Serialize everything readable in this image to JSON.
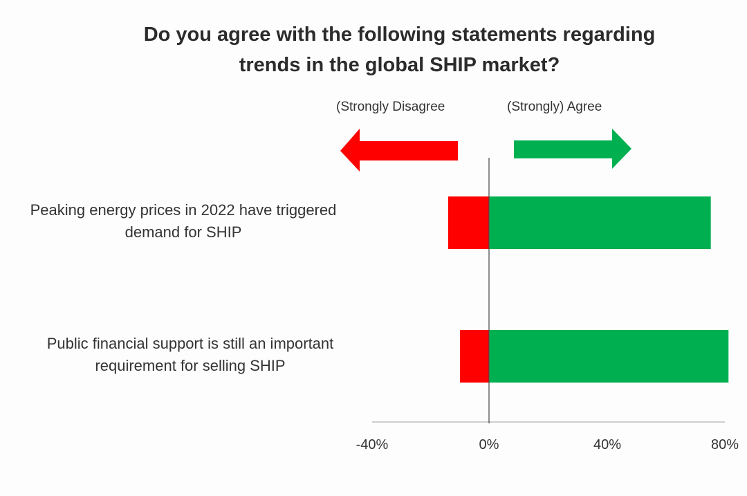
{
  "chart_data": {
    "type": "bar",
    "orientation": "horizontal",
    "stacked": "diverging",
    "title": "Do you agree with the following statements regarding trends in the global SHIP market?",
    "title_lines": [
      "Do you agree with the following statements regarding",
      "trends in the global SHIP market?"
    ],
    "categories": [
      "Peaking energy prices in 2022 have triggered demand for SHIP",
      "Public financial support is still an important requirement for selling SHIP"
    ],
    "category_lines": [
      [
        "Peaking energy prices in 2022 have triggered",
        "demand for SHIP"
      ],
      [
        "Public financial support is still an important",
        "requirement for selling SHIP"
      ]
    ],
    "series": [
      {
        "name": "(Strongly Disagree",
        "color": "#ff0000",
        "values": [
          -14,
          -10
        ]
      },
      {
        "name": "(Strongly) Agree",
        "color": "#00b050",
        "values": [
          75,
          81
        ]
      }
    ],
    "xlim": [
      -40,
      80
    ],
    "xticks": [
      -40,
      0,
      40,
      80
    ],
    "xtick_labels": [
      "-40%",
      "0%",
      "40%",
      "80%"
    ],
    "grid": false,
    "legend_position": "top (arrows)"
  }
}
